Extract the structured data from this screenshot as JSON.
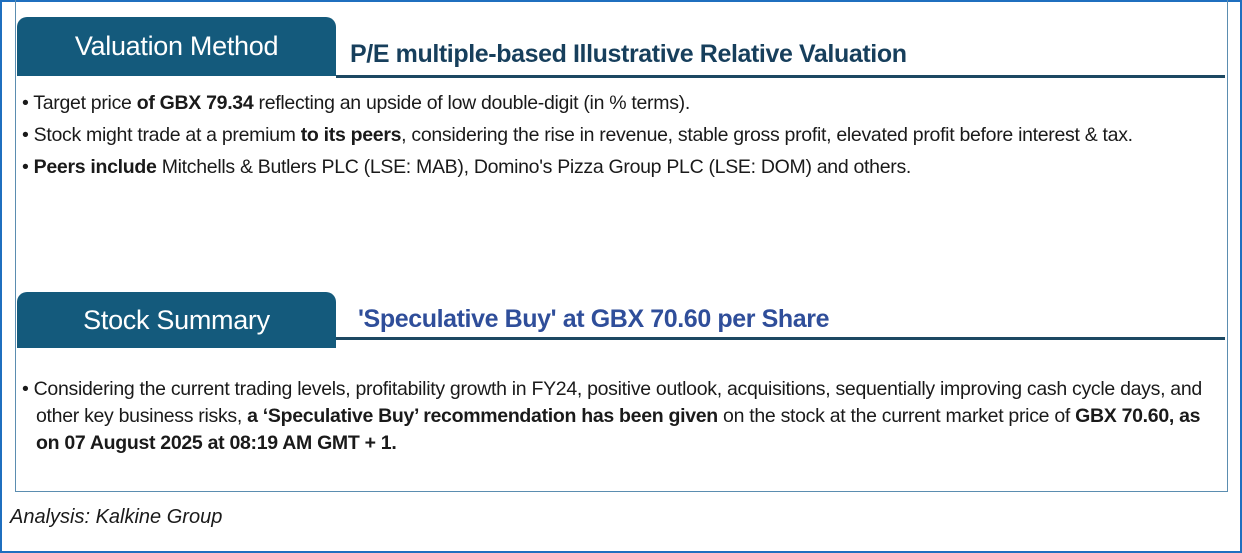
{
  "valuation": {
    "tab_label": "Valuation Method",
    "heading": "P/E multiple-based Illustrative Relative Valuation",
    "heading_color": "#173f5c",
    "bullets": [
      {
        "parts": [
          [
            "• Target price ",
            false
          ],
          [
            "of GBX 79.34",
            true
          ],
          [
            " reflecting an upside of low double-digit (in % terms).",
            false
          ]
        ]
      },
      {
        "parts": [
          [
            "• Stock might trade at a premium ",
            false
          ],
          [
            "to its peers",
            true
          ],
          [
            ", considering the rise in revenue, stable gross profit, elevated profit before interest & tax.",
            false
          ]
        ]
      },
      {
        "parts": [
          [
            "• ",
            false
          ],
          [
            "Peers include",
            true
          ],
          [
            " Mitchells & Butlers PLC (LSE: MAB), Domino's Pizza Group PLC (LSE: DOM) and others.",
            false
          ]
        ]
      }
    ]
  },
  "summary": {
    "tab_label": "Stock Summary",
    "heading": "'Speculative Buy' at GBX 70.60 per Share",
    "heading_color": "#2f4e9a",
    "bullets": [
      {
        "parts": [
          [
            "• Considering the current trading levels, profitability growth in  FY24, positive outlook, acquisitions, sequentially improving cash cycle days, and other key business risks, ",
            false
          ],
          [
            "a ‘Speculative Buy’ recommendation has been given",
            true
          ],
          [
            " on the stock at the current market price of ",
            false
          ],
          [
            "GBX 70.60, as on 07 August 2025 at 08:19 AM GMT + 1.",
            true
          ]
        ]
      }
    ]
  },
  "footer": {
    "source": "Analysis: Kalkine Group"
  },
  "colors": {
    "tab": "#145a7c",
    "border": "#1f6fbf"
  }
}
